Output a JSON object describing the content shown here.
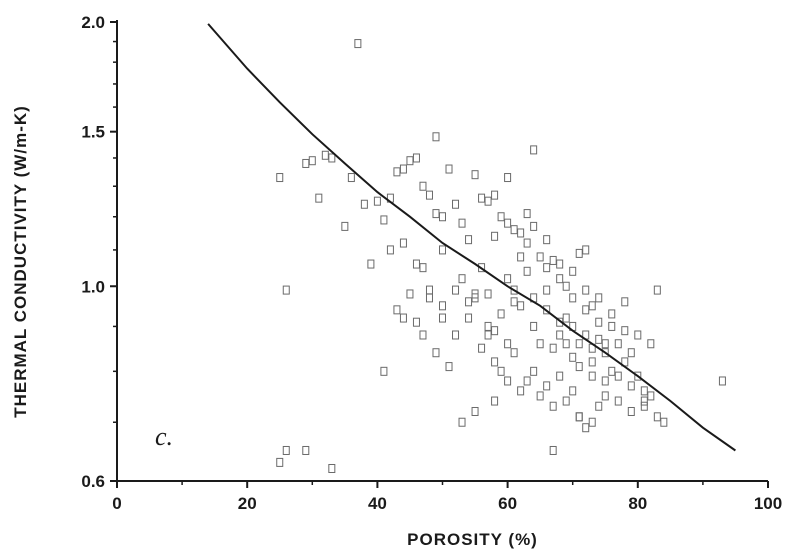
{
  "chart_data": {
    "type": "scatter",
    "xlabel": "POROSITY (%)",
    "ylabel": "THERMAL CONDUCTIVITY (W/m-K)",
    "panel_label": "c.",
    "xlim": [
      0,
      100
    ],
    "ylim": [
      0.6,
      2.0
    ],
    "y_scale": "log",
    "grid": false,
    "x_ticks": [
      {
        "value": 0,
        "label": "0"
      },
      {
        "value": 20,
        "label": "20"
      },
      {
        "value": 40,
        "label": "40"
      },
      {
        "value": 60,
        "label": "60"
      },
      {
        "value": 80,
        "label": "80"
      },
      {
        "value": 100,
        "label": "100"
      }
    ],
    "y_ticks": [
      {
        "value": 0.6,
        "label": "0.6"
      },
      {
        "value": 1.0,
        "label": "1.0"
      },
      {
        "value": 1.5,
        "label": "1.5"
      },
      {
        "value": 2.0,
        "label": "2.0"
      }
    ],
    "points": [
      [
        37,
        1.89
      ],
      [
        64,
        1.43
      ],
      [
        49,
        1.48
      ],
      [
        25,
        1.33
      ],
      [
        29,
        1.38
      ],
      [
        30,
        1.39
      ],
      [
        32,
        1.41
      ],
      [
        33,
        1.4
      ],
      [
        31,
        1.26
      ],
      [
        35,
        1.17
      ],
      [
        36,
        1.33
      ],
      [
        38,
        1.24
      ],
      [
        40,
        1.25
      ],
      [
        41,
        1.19
      ],
      [
        42,
        1.26
      ],
      [
        43,
        1.35
      ],
      [
        44,
        1.36
      ],
      [
        45,
        1.39
      ],
      [
        46,
        1.4
      ],
      [
        47,
        1.3
      ],
      [
        48,
        1.27
      ],
      [
        49,
        1.21
      ],
      [
        50,
        1.2
      ],
      [
        51,
        1.36
      ],
      [
        52,
        1.24
      ],
      [
        53,
        1.18
      ],
      [
        55,
        1.34
      ],
      [
        56,
        1.26
      ],
      [
        57,
        1.25
      ],
      [
        58,
        1.27
      ],
      [
        59,
        1.2
      ],
      [
        60,
        1.33
      ],
      [
        61,
        1.16
      ],
      [
        62,
        1.15
      ],
      [
        54,
        1.13
      ],
      [
        50,
        1.1
      ],
      [
        47,
        1.05
      ],
      [
        45,
        0.98
      ],
      [
        43,
        0.94
      ],
      [
        46,
        0.91
      ],
      [
        48,
        0.97
      ],
      [
        50,
        0.95
      ],
      [
        52,
        0.99
      ],
      [
        53,
        1.02
      ],
      [
        54,
        0.92
      ],
      [
        55,
        0.97
      ],
      [
        56,
        1.05
      ],
      [
        57,
        0.98
      ],
      [
        58,
        0.89
      ],
      [
        59,
        0.93
      ],
      [
        60,
        1.02
      ],
      [
        61,
        0.96
      ],
      [
        62,
        0.95
      ],
      [
        63,
        1.04
      ],
      [
        64,
        0.9
      ],
      [
        65,
        0.86
      ],
      [
        66,
        0.94
      ],
      [
        67,
        0.85
      ],
      [
        68,
        0.88
      ],
      [
        69,
        0.92
      ],
      [
        70,
        0.83
      ],
      [
        71,
        0.86
      ],
      [
        72,
        0.94
      ],
      [
        73,
        0.82
      ],
      [
        74,
        0.87
      ],
      [
        75,
        0.84
      ],
      [
        76,
        0.8
      ],
      [
        77,
        0.86
      ],
      [
        78,
        0.82
      ],
      [
        79,
        0.77
      ],
      [
        80,
        0.79
      ],
      [
        81,
        0.73
      ],
      [
        82,
        0.75
      ],
      [
        83,
        0.99
      ],
      [
        84,
        0.7
      ],
      [
        62,
        1.08
      ],
      [
        63,
        1.12
      ],
      [
        65,
        1.08
      ],
      [
        66,
        1.05
      ],
      [
        67,
        1.07
      ],
      [
        68,
        1.02
      ],
      [
        69,
        1.0
      ],
      [
        70,
        0.97
      ],
      [
        71,
        1.09
      ],
      [
        72,
        1.1
      ],
      [
        73,
        0.95
      ],
      [
        74,
        0.91
      ],
      [
        76,
        0.9
      ],
      [
        78,
        0.96
      ],
      [
        56,
        0.85
      ],
      [
        57,
        0.88
      ],
      [
        58,
        0.82
      ],
      [
        59,
        0.8
      ],
      [
        60,
        0.86
      ],
      [
        61,
        0.84
      ],
      [
        63,
        0.78
      ],
      [
        64,
        0.8
      ],
      [
        65,
        0.75
      ],
      [
        66,
        0.77
      ],
      [
        67,
        0.73
      ],
      [
        68,
        0.79
      ],
      [
        69,
        0.74
      ],
      [
        70,
        0.76
      ],
      [
        71,
        0.71
      ],
      [
        72,
        0.69
      ],
      [
        73,
        0.7
      ],
      [
        74,
        0.73
      ],
      [
        75,
        0.75
      ],
      [
        62,
        0.76
      ],
      [
        60,
        0.78
      ],
      [
        58,
        0.74
      ],
      [
        55,
        0.72
      ],
      [
        53,
        0.7
      ],
      [
        51,
        0.81
      ],
      [
        49,
        0.84
      ],
      [
        47,
        0.88
      ],
      [
        44,
        0.92
      ],
      [
        41,
        0.8
      ],
      [
        67,
        0.65
      ],
      [
        71,
        0.71
      ],
      [
        25,
        0.63
      ],
      [
        26,
        0.65
      ],
      [
        29,
        0.65
      ],
      [
        33,
        0.62
      ],
      [
        26,
        0.99
      ],
      [
        93,
        0.78
      ],
      [
        55,
        0.98
      ],
      [
        57,
        0.9
      ],
      [
        61,
        0.99
      ],
      [
        64,
        0.97
      ],
      [
        66,
        0.99
      ],
      [
        68,
        0.91
      ],
      [
        70,
        0.9
      ],
      [
        72,
        0.88
      ],
      [
        73,
        0.85
      ],
      [
        75,
        0.86
      ],
      [
        77,
        0.79
      ],
      [
        79,
        0.84
      ],
      [
        81,
        0.76
      ],
      [
        54,
        0.96
      ],
      [
        52,
        0.88
      ],
      [
        50,
        0.92
      ],
      [
        48,
        0.99
      ],
      [
        46,
        1.06
      ],
      [
        44,
        1.12
      ],
      [
        42,
        1.1
      ],
      [
        39,
        1.06
      ],
      [
        58,
        1.14
      ],
      [
        60,
        1.18
      ],
      [
        63,
        1.21
      ],
      [
        64,
        1.17
      ],
      [
        66,
        1.13
      ],
      [
        68,
        1.06
      ],
      [
        70,
        1.04
      ],
      [
        72,
        0.99
      ],
      [
        74,
        0.97
      ],
      [
        76,
        0.93
      ],
      [
        78,
        0.89
      ],
      [
        80,
        0.88
      ],
      [
        82,
        0.86
      ],
      [
        69,
        0.86
      ],
      [
        71,
        0.81
      ],
      [
        73,
        0.79
      ],
      [
        75,
        0.78
      ],
      [
        77,
        0.74
      ],
      [
        79,
        0.72
      ],
      [
        81,
        0.74
      ],
      [
        83,
        0.71
      ]
    ],
    "curve": [
      [
        14,
        1.99
      ],
      [
        20,
        1.77
      ],
      [
        25,
        1.62
      ],
      [
        30,
        1.49
      ],
      [
        35,
        1.38
      ],
      [
        40,
        1.28
      ],
      [
        45,
        1.2
      ],
      [
        50,
        1.12
      ],
      [
        55,
        1.06
      ],
      [
        60,
        1.0
      ],
      [
        65,
        0.95
      ],
      [
        70,
        0.89
      ],
      [
        75,
        0.84
      ],
      [
        80,
        0.79
      ],
      [
        85,
        0.74
      ],
      [
        90,
        0.69
      ],
      [
        95,
        0.65
      ]
    ]
  }
}
